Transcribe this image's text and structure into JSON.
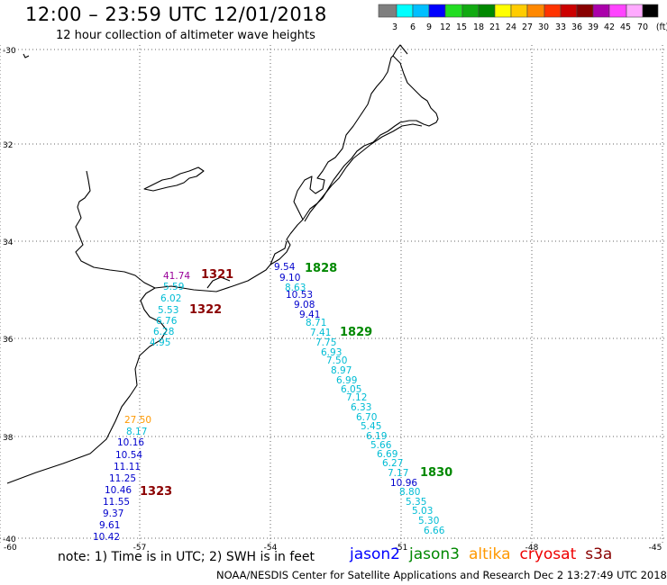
{
  "header": {
    "title": "12:00 – 23:59 UTC 12/01/2018",
    "subtitle": "12 hour collection of altimeter wave heights"
  },
  "legend_scale": {
    "labels": [
      "3",
      "6",
      "9",
      "12",
      "15",
      "18",
      "21",
      "24",
      "27",
      "30",
      "33",
      "36",
      "39",
      "42",
      "45",
      "70",
      "(ft)"
    ],
    "colors": [
      "#7f7f7f",
      "#00ffff",
      "#00bfff",
      "#0000ff",
      "#22dd22",
      "#11aa11",
      "#008800",
      "#ffff00",
      "#ffcc00",
      "#ff8800",
      "#ff3300",
      "#cc0000",
      "#880000",
      "#aa00aa",
      "#ff44ff",
      "#ffaaff",
      "#000000"
    ]
  },
  "axes": {
    "lat_labels": [
      "-30",
      "32",
      "34",
      "36",
      "38",
      "-40"
    ],
    "lon_labels": [
      "-60",
      "-57",
      "-54",
      "-51",
      "-48",
      "-45"
    ]
  },
  "passes": [
    {
      "time": "1321",
      "color": "#8b0000"
    },
    {
      "time": "1322",
      "color": "#8b0000"
    },
    {
      "time": "1323",
      "color": "#8b0000"
    },
    {
      "time": "1828",
      "color": "#008800"
    },
    {
      "time": "1829",
      "color": "#008800"
    },
    {
      "time": "1830",
      "color": "#008800"
    }
  ],
  "observations": [
    {
      "value": "41.74",
      "color": "#990099"
    },
    {
      "value": "5.59",
      "color": "#00bcd4"
    },
    {
      "value": "6.02",
      "color": "#00bcd4"
    },
    {
      "value": "5.53",
      "color": "#00bcd4"
    },
    {
      "value": "6.76",
      "color": "#00bcd4"
    },
    {
      "value": "6.28",
      "color": "#00bcd4"
    },
    {
      "value": "4.95",
      "color": "#00bcd4"
    },
    {
      "value": "27.50",
      "color": "#ff9900"
    },
    {
      "value": "8.17",
      "color": "#00bcd4"
    },
    {
      "value": "10.16",
      "color": "#0000cc"
    },
    {
      "value": "10.54",
      "color": "#0000cc"
    },
    {
      "value": "11.11",
      "color": "#0000cc"
    },
    {
      "value": "11.25",
      "color": "#0000cc"
    },
    {
      "value": "10.46",
      "color": "#0000cc"
    },
    {
      "value": "11.55",
      "color": "#0000cc"
    },
    {
      "value": "9.37",
      "color": "#0000cc"
    },
    {
      "value": "9.61",
      "color": "#0000cc"
    },
    {
      "value": "10.42",
      "color": "#0000cc"
    },
    {
      "value": "9.54",
      "color": "#0000cc"
    },
    {
      "value": "9.10",
      "color": "#0000cc"
    },
    {
      "value": "8.63",
      "color": "#00bcd4"
    },
    {
      "value": "10.53",
      "color": "#0000cc"
    },
    {
      "value": "9.08",
      "color": "#0000cc"
    },
    {
      "value": "9.41",
      "color": "#0000cc"
    },
    {
      "value": "8.71",
      "color": "#00bcd4"
    },
    {
      "value": "7.41",
      "color": "#00bcd4"
    },
    {
      "value": "7.75",
      "color": "#00bcd4"
    },
    {
      "value": "6.93",
      "color": "#00bcd4"
    },
    {
      "value": "7.50",
      "color": "#00bcd4"
    },
    {
      "value": "8.97",
      "color": "#00bcd4"
    },
    {
      "value": "6.99",
      "color": "#00bcd4"
    },
    {
      "value": "6.05",
      "color": "#00bcd4"
    },
    {
      "value": "7.12",
      "color": "#00bcd4"
    },
    {
      "value": "6.33",
      "color": "#00bcd4"
    },
    {
      "value": "6.70",
      "color": "#00bcd4"
    },
    {
      "value": "5.45",
      "color": "#00bcd4"
    },
    {
      "value": "6.19",
      "color": "#00bcd4"
    },
    {
      "value": "5.66",
      "color": "#00bcd4"
    },
    {
      "value": "6.69",
      "color": "#00bcd4"
    },
    {
      "value": "6.27",
      "color": "#00bcd4"
    },
    {
      "value": "7.17",
      "color": "#00bcd4"
    },
    {
      "value": "10.96",
      "color": "#0000cc"
    },
    {
      "value": "8.80",
      "color": "#00bcd4"
    },
    {
      "value": "5.35",
      "color": "#00bcd4"
    },
    {
      "value": "5.03",
      "color": "#00bcd4"
    },
    {
      "value": "5.30",
      "color": "#00bcd4"
    },
    {
      "value": "6.66",
      "color": "#00bcd4"
    }
  ],
  "footer": {
    "note": "note:  1) Time is in UTC;  2) SWH is in feet",
    "satellites": [
      {
        "name": "jason2",
        "color": "#0000ff"
      },
      {
        "name": "jason3",
        "color": "#008800"
      },
      {
        "name": "altika",
        "color": "#ff9900"
      },
      {
        "name": "cryosat",
        "color": "#ee0000"
      },
      {
        "name": "s3a",
        "color": "#880000"
      }
    ],
    "credit": "NOAA/NESDIS Center for Satellite Applications and Research    Dec  2 13:27:49 UTC 2018"
  }
}
